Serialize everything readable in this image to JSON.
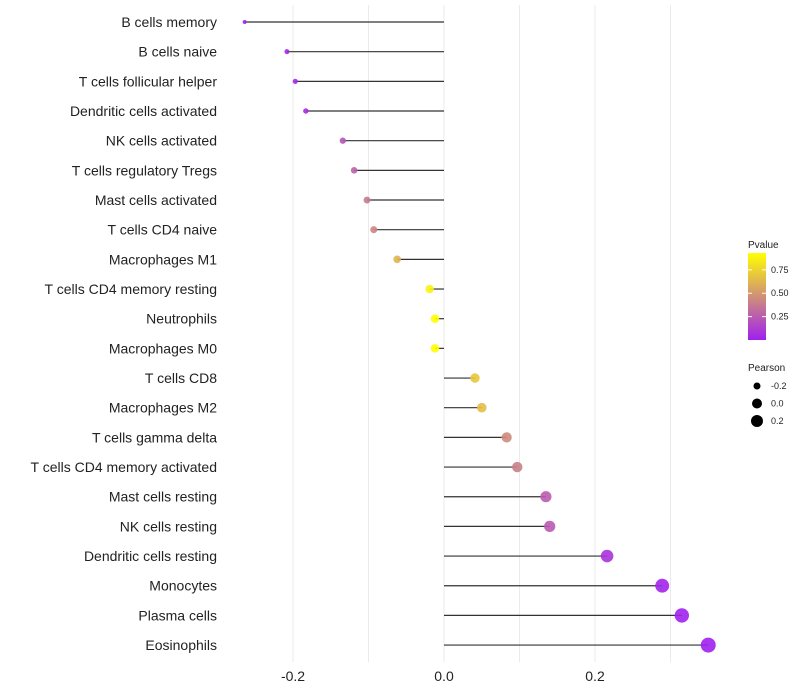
{
  "chart_data": {
    "type": "lollipop",
    "title": "",
    "xlabel": "",
    "ylabel": "",
    "xlim": [
      -0.28,
      0.36
    ],
    "xticks": [
      -0.2,
      0.0,
      0.2
    ],
    "xtick_labels": [
      "-0.2",
      "0.0",
      "0.2"
    ],
    "grid": true,
    "categories": [
      "B cells memory",
      "B cells naive",
      "T cells follicular helper",
      "Dendritic cells activated",
      "NK cells activated",
      "T cells regulatory  Tregs",
      "Mast cells activated",
      "T cells CD4 naive",
      "Macrophages M1",
      "T cells CD4 memory resting",
      "Neutrophils",
      "Macrophages M0",
      "T cells CD8",
      "Macrophages M2",
      "T cells gamma delta",
      "T cells CD4 memory activated",
      "Mast cells resting",
      "NK cells resting",
      "Dendritic cells resting",
      "Monocytes",
      "Plasma cells",
      "Eosinophils"
    ],
    "pearson": [
      -0.264,
      -0.208,
      -0.197,
      -0.183,
      -0.134,
      -0.119,
      -0.102,
      -0.093,
      -0.062,
      -0.019,
      -0.012,
      -0.012,
      0.041,
      0.05,
      0.083,
      0.097,
      0.135,
      0.14,
      0.216,
      0.289,
      0.315,
      0.35
    ],
    "pvalue": [
      0.01,
      0.03,
      0.04,
      0.06,
      0.22,
      0.28,
      0.38,
      0.42,
      0.62,
      0.88,
      0.93,
      0.93,
      0.7,
      0.66,
      0.45,
      0.4,
      0.25,
      0.24,
      0.08,
      0.02,
      0.01,
      0.004
    ],
    "color_legend": {
      "title": "Pvalue",
      "ticks": [
        "0.75",
        "0.50",
        "0.25"
      ],
      "tick_values": [
        0.75,
        0.5,
        0.25
      ],
      "range": [
        0,
        0.93
      ],
      "low_color": "#A020F0",
      "high_color": "#FFFF00"
    },
    "size_legend": {
      "title": "Pearson",
      "labels": [
        "-0.2",
        "0.0",
        "0.2"
      ],
      "values": [
        -0.2,
        0.0,
        0.2
      ]
    },
    "legend_position": "right"
  }
}
